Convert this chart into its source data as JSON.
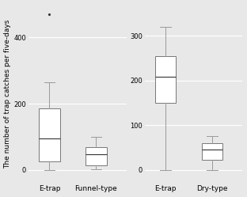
{
  "panel1": {
    "xlabel_labels": [
      "E-trap",
      "Funnel-type"
    ],
    "yticks": [
      0,
      200,
      400
    ],
    "ylim": [
      -40,
      500
    ],
    "boxes": [
      {
        "q1": 25,
        "median": 95,
        "q3": 185,
        "whisker_low": 0,
        "whisker_high": 265,
        "outliers": [
          470
        ]
      },
      {
        "q1": 15,
        "median": 47,
        "q3": 68,
        "whisker_low": 2,
        "whisker_high": 100,
        "outliers": []
      }
    ]
  },
  "panel2": {
    "xlabel_labels": [
      "E-trap",
      "Dry-type"
    ],
    "yticks": [
      0,
      100,
      200,
      300
    ],
    "ylim": [
      -30,
      370
    ],
    "boxes": [
      {
        "q1": 150,
        "median": 208,
        "q3": 255,
        "whisker_low": 0,
        "whisker_high": 320,
        "outliers": []
      },
      {
        "q1": 22,
        "median": 45,
        "q3": 60,
        "whisker_low": 0,
        "whisker_high": 75,
        "outliers": []
      }
    ]
  },
  "ylabel": "The number of trap catches per five-days",
  "bg_color": "#e8e8e8",
  "box_facecolor": "#ffffff",
  "box_edgecolor": "#777777",
  "whisker_color": "#999999",
  "median_color": "#333333",
  "flier_color": "#333333",
  "grid_color": "#ffffff",
  "font_size": 6.5,
  "tick_font_size": 6,
  "ylabel_font_size": 6.5
}
